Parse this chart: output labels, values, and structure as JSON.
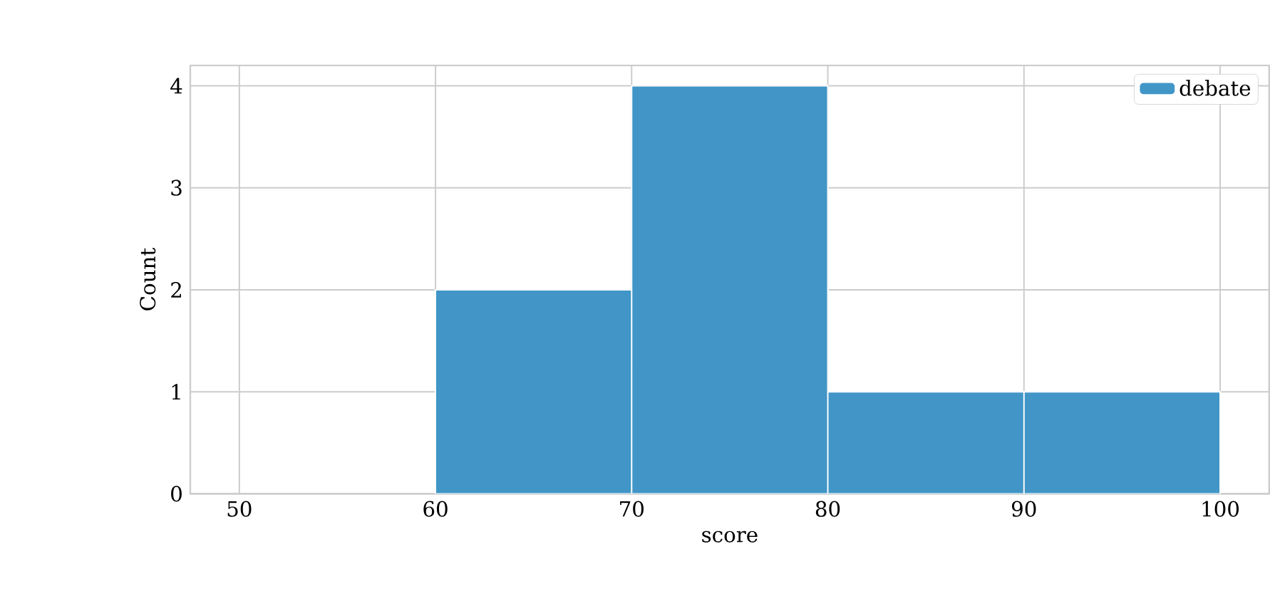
{
  "chart_data": {
    "type": "histogram",
    "xlabel": "score",
    "ylabel": "Count",
    "bins": [
      60,
      70,
      80,
      90,
      100
    ],
    "series": [
      {
        "name": "debate",
        "color": "#4196c7",
        "values": [
          2,
          4,
          1,
          1
        ]
      }
    ],
    "xlim": [
      47.5,
      102.5
    ],
    "ylim": [
      0,
      4.2
    ],
    "xticks": [
      50,
      60,
      70,
      80,
      90,
      100
    ],
    "yticks": [
      0,
      1,
      2,
      3,
      4
    ],
    "grid": true,
    "legend": "top right"
  }
}
